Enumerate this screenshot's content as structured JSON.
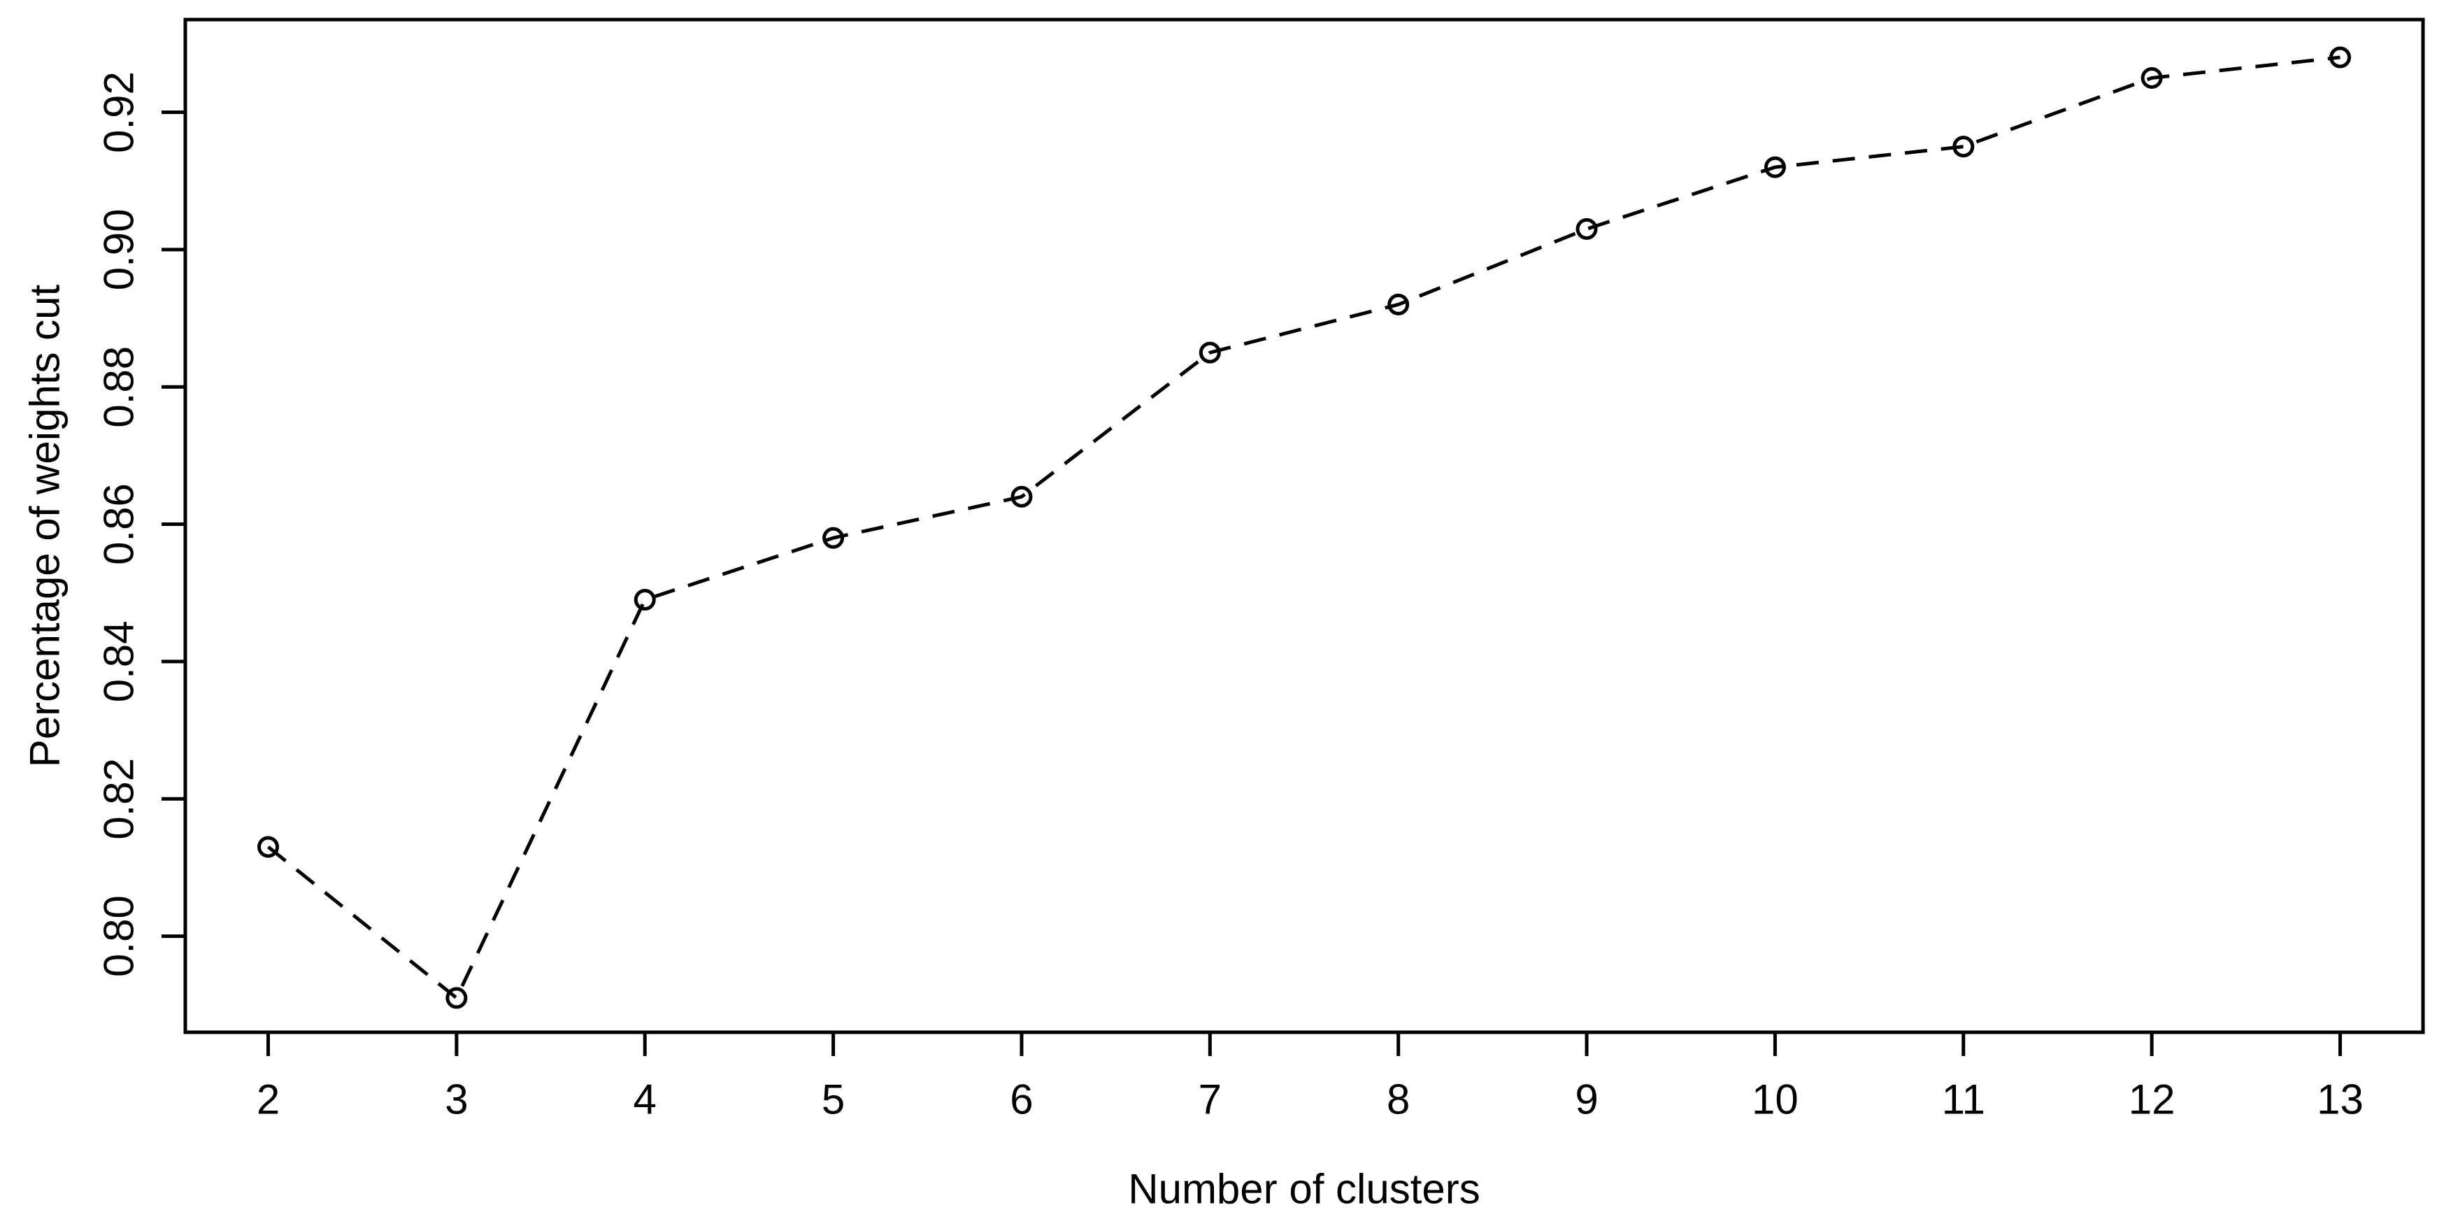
{
  "figure": {
    "ink_color": "#000000",
    "background_color": "#ffffff"
  },
  "chart_data": {
    "type": "line",
    "title": "",
    "xlabel": "Number of clusters",
    "ylabel": "Percentage of weights cut",
    "x": [
      2,
      3,
      4,
      5,
      6,
      7,
      8,
      9,
      10,
      11,
      12,
      13
    ],
    "values": [
      0.813,
      0.791,
      0.849,
      0.858,
      0.864,
      0.885,
      0.892,
      0.903,
      0.912,
      0.915,
      0.925,
      0.928
    ],
    "series_name": "percentage-of-weights-cut",
    "x_tick_labels": [
      "2",
      "3",
      "4",
      "5",
      "6",
      "7",
      "8",
      "9",
      "10",
      "11",
      "12",
      "13"
    ],
    "y_tick_values": [
      0.8,
      0.82,
      0.84,
      0.86,
      0.88,
      0.9,
      0.92
    ],
    "y_tick_labels": [
      "0.80",
      "0.82",
      "0.84",
      "0.86",
      "0.88",
      "0.90",
      "0.92"
    ],
    "xlim": [
      1.56,
      13.44
    ],
    "ylim": [
      0.786,
      0.9335
    ],
    "grid": false,
    "legend": null,
    "line_style": "dashed",
    "marker": "open-circle",
    "y_tick_label_rotation": "vertical"
  }
}
